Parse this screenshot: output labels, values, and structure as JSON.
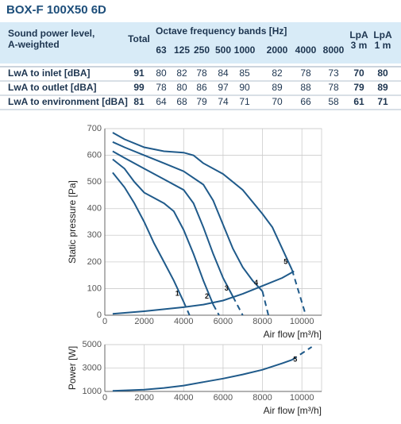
{
  "title": "BOX-F 100X50 6D",
  "table": {
    "header": {
      "label": [
        "Sound power level,",
        "A-weighted"
      ],
      "total": "Total",
      "bands_title": "Octave frequency bands [Hz]",
      "bands": [
        63,
        125,
        250,
        500,
        1000,
        2000,
        4000,
        8000
      ],
      "lpa3": [
        "LpA",
        "3 m"
      ],
      "lpa1": [
        "LpA",
        "1 m"
      ]
    },
    "rows": [
      [
        "LwA to inlet [dBA]",
        91,
        80,
        82,
        78,
        84,
        85,
        82,
        78,
        73,
        70,
        80
      ],
      [
        "LwA to outlet [dBA]",
        99,
        78,
        80,
        86,
        97,
        90,
        89,
        88,
        78,
        79,
        89
      ],
      [
        "LwA to environment [dBA]",
        81,
        64,
        68,
        79,
        74,
        71,
        70,
        66,
        58,
        61,
        71
      ]
    ]
  },
  "chart_data": [
    {
      "type": "line",
      "y_label": "Static pressure [Pa]",
      "x_label": "Air flow [m³/h]",
      "xlim": [
        0,
        11000
      ],
      "ylim": [
        0,
        700
      ],
      "xticks": [
        0,
        2000,
        4000,
        6000,
        8000,
        10000
      ],
      "yticks": [
        0,
        100,
        200,
        300,
        400,
        500,
        600,
        700
      ],
      "grid": true,
      "series": [
        {
          "name": "1",
          "color": "#1f5a8a",
          "x": [
            400,
            1000,
            1500,
            2000,
            2500,
            3000,
            3500,
            4000
          ],
          "values": [
            535,
            480,
            420,
            350,
            270,
            200,
            130,
            50
          ],
          "dashed": {
            "x": [
              4000,
              4300
            ],
            "values": [
              50,
              0
            ]
          }
        },
        {
          "name": "2",
          "color": "#1f5a8a",
          "x": [
            400,
            1000,
            1500,
            2000,
            2500,
            3000,
            3500,
            4000,
            4500,
            5000,
            5500
          ],
          "values": [
            585,
            550,
            500,
            460,
            440,
            420,
            390,
            320,
            230,
            130,
            40
          ],
          "dashed": {
            "x": [
              5500,
              5800
            ],
            "values": [
              40,
              0
            ]
          }
        },
        {
          "name": "3",
          "color": "#1f5a8a",
          "x": [
            400,
            1000,
            2000,
            3000,
            4000,
            4500,
            5000,
            5500,
            6000,
            6500
          ],
          "values": [
            615,
            590,
            550,
            510,
            470,
            420,
            330,
            230,
            140,
            70
          ],
          "dashed": {
            "x": [
              6500,
              7000
            ],
            "values": [
              70,
              0
            ]
          }
        },
        {
          "name": "4",
          "color": "#1f5a8a",
          "x": [
            400,
            1000,
            2000,
            3000,
            4000,
            5000,
            5500,
            6000,
            6500,
            7000,
            7500,
            8000
          ],
          "values": [
            650,
            630,
            600,
            570,
            540,
            490,
            430,
            340,
            250,
            180,
            130,
            90
          ],
          "dashed": {
            "x": [
              8000,
              8300
            ],
            "values": [
              90,
              0
            ]
          }
        },
        {
          "name": "5",
          "color": "#1f5a8a",
          "x": [
            400,
            1000,
            2000,
            3000,
            4000,
            4500,
            5000,
            6000,
            7000,
            8000,
            8500,
            9000,
            9500
          ],
          "values": [
            685,
            660,
            630,
            615,
            610,
            600,
            570,
            530,
            470,
            380,
            330,
            250,
            170
          ],
          "dashed": {
            "x": [
              9500,
              10200
            ],
            "values": [
              170,
              0
            ]
          }
        },
        {
          "color": "#1f5a8a",
          "x": [
            400,
            2000,
            4000,
            5000,
            6000,
            7000,
            8000,
            9000,
            9600
          ],
          "values": [
            5,
            15,
            30,
            40,
            55,
            80,
            110,
            140,
            165
          ]
        }
      ]
    },
    {
      "type": "line",
      "y_label": "Power [W]",
      "x_label": "Air flow [m³/h]",
      "xlim": [
        0,
        11000
      ],
      "ylim": [
        1000,
        5000
      ],
      "xticks": [
        0,
        2000,
        4000,
        6000,
        8000,
        10000
      ],
      "yticks": [
        1000,
        3000,
        5000
      ],
      "grid": true,
      "series": [
        {
          "name": "5",
          "color": "#1f5a8a",
          "x": [
            400,
            2000,
            3000,
            4000,
            5000,
            6000,
            7000,
            8000,
            9000,
            9500
          ],
          "values": [
            1050,
            1150,
            1300,
            1500,
            1800,
            2100,
            2450,
            2850,
            3400,
            3700
          ],
          "dashed": {
            "x": [
              9500,
              10500
            ],
            "values": [
              3700,
              4800
            ]
          }
        }
      ]
    }
  ]
}
